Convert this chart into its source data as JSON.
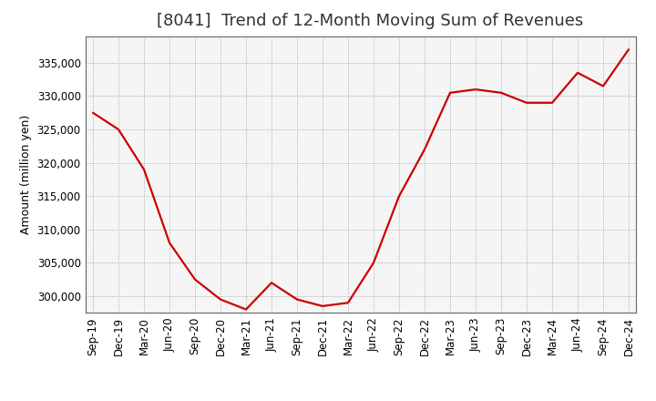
{
  "title": "[8041]  Trend of 12-Month Moving Sum of Revenues",
  "ylabel": "Amount (million yen)",
  "background_color": "#ffffff",
  "plot_bg_color": "#f5f5f5",
  "grid_color": "#999999",
  "line_color": "#cc0000",
  "x_labels": [
    "Sep-19",
    "Dec-19",
    "Mar-20",
    "Jun-20",
    "Sep-20",
    "Dec-20",
    "Mar-21",
    "Jun-21",
    "Sep-21",
    "Dec-21",
    "Mar-22",
    "Jun-22",
    "Sep-22",
    "Dec-22",
    "Mar-23",
    "Jun-23",
    "Sep-23",
    "Dec-23",
    "Mar-24",
    "Jun-24",
    "Sep-24",
    "Dec-24"
  ],
  "values": [
    327500,
    325000,
    319000,
    308000,
    302500,
    299500,
    298000,
    302000,
    299500,
    298500,
    299000,
    305000,
    315000,
    322000,
    330500,
    331000,
    330500,
    329000,
    329000,
    333500,
    331500,
    337000
  ],
  "ylim_min": 297500,
  "ylim_max": 339000,
  "yticks": [
    300000,
    305000,
    310000,
    315000,
    320000,
    325000,
    330000,
    335000
  ],
  "title_fontsize": 13,
  "axis_fontsize": 9,
  "tick_fontsize": 8.5,
  "line_width": 1.6
}
